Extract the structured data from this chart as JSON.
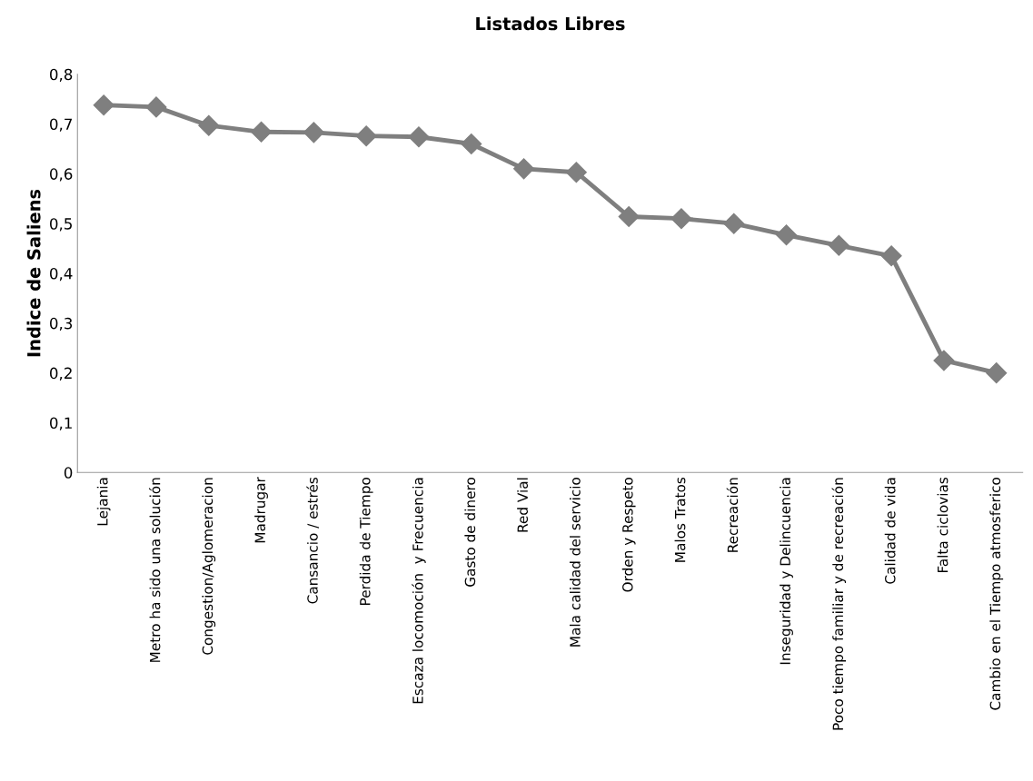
{
  "chart_data": {
    "type": "line",
    "title": "Listados Libres",
    "ylabel": "Indice de Saliens",
    "categories": [
      "Lejania",
      "Metro ha sido una solución",
      "Congestion/Aglomeracion",
      "Madrugar",
      "Cansancio / estrés",
      "Perdida de Tiempo",
      "Escaza locomoción  y Frecuencia",
      "Gasto de dinero",
      "Red Vial",
      "Mala calidad del servicio",
      "Orden y Respeto",
      "Malos Tratos",
      "Recreación",
      "Inseguridad y Delincuencia",
      "Poco tiempo familiar y de recreación",
      "Calidad de vida",
      "Falta ciclovias",
      "Cambio en el Tiempo atmosferico"
    ],
    "series": [
      {
        "color": "#7f7f7f",
        "values": [
          0.738,
          0.734,
          0.697,
          0.684,
          0.683,
          0.676,
          0.674,
          0.66,
          0.61,
          0.603,
          0.514,
          0.51,
          0.5,
          0.477,
          0.456,
          0.435,
          0.225,
          0.2
        ]
      }
    ],
    "ylim": [
      0,
      0.8
    ],
    "yticks": [
      0,
      {
        "value": 0.1,
        "label": "0,1"
      },
      {
        "value": 0.2,
        "label": "0,2"
      },
      {
        "value": 0.3,
        "label": "0,3"
      },
      {
        "value": 0.4,
        "label": "0,4"
      },
      {
        "value": 0.5,
        "label": "0,5"
      },
      {
        "value": 0.6,
        "label": "0,6"
      },
      {
        "value": 0.7,
        "label": "0,7"
      },
      {
        "value": 0.8,
        "label": "0,8"
      }
    ],
    "grid": false,
    "marker": "diamond",
    "line_style": "solid"
  }
}
